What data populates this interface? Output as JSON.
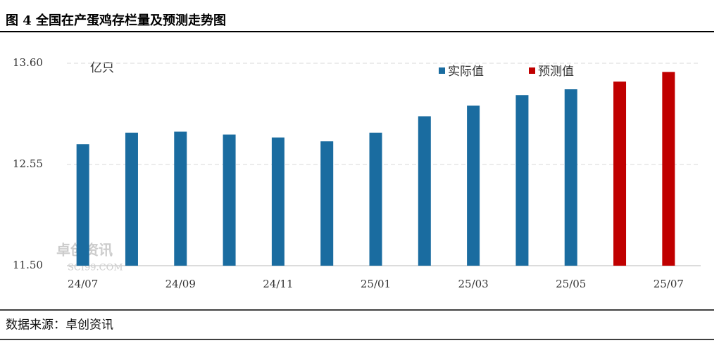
{
  "chart_data": {
    "type": "bar",
    "title": "图 4 全国在产蛋鸡存栏量及预测走势图",
    "unit": "亿只",
    "source": "数据来源：卓创资讯",
    "watermark": [
      "卓创资讯",
      "SCI99.COM"
    ],
    "categories": [
      "24/07",
      null,
      "24/09",
      null,
      "24/11",
      null,
      "25/01",
      null,
      "25/03",
      null,
      "25/05",
      null,
      "25/07"
    ],
    "series": [
      {
        "name": "实际值",
        "color": "#1a6ca0",
        "values": [
          12.76,
          12.88,
          12.89,
          12.86,
          12.83,
          12.79,
          12.88,
          13.05,
          13.16,
          13.27,
          13.33,
          null,
          null
        ]
      },
      {
        "name": "预测值",
        "color": "#c00000",
        "values": [
          null,
          null,
          null,
          null,
          null,
          null,
          null,
          null,
          null,
          null,
          null,
          13.41,
          13.51
        ]
      }
    ],
    "ylim": [
      11.5,
      13.6
    ],
    "yticks": [
      {
        "value": 11.5,
        "label": "11.50"
      },
      12.55,
      {
        "value": 13.6,
        "label": "13.60"
      }
    ],
    "grid": true
  }
}
